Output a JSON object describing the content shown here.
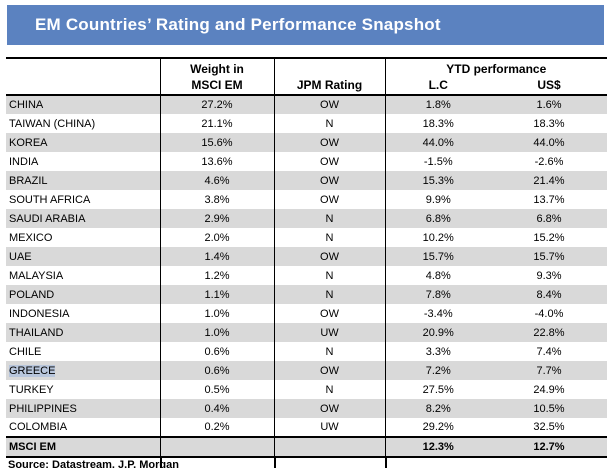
{
  "banner": {
    "title": "EM Countries’ Rating and Performance Snapshot",
    "bg_color": "#5b82c0",
    "text_color": "#ffffff"
  },
  "table": {
    "header": {
      "country_col": "",
      "weight_line1": "Weight in",
      "weight_line2": "MSCI EM",
      "rating": "JPM Rating",
      "ytd_group": "YTD performance",
      "lc": "L.C",
      "usd": "US$"
    },
    "rows": [
      {
        "country": "CHINA",
        "weight": "27.2%",
        "rating": "OW",
        "lc": "1.8%",
        "usd": "1.6%"
      },
      {
        "country": "TAIWAN (CHINA)",
        "weight": "21.1%",
        "rating": "N",
        "lc": "18.3%",
        "usd": "18.3%"
      },
      {
        "country": "KOREA",
        "weight": "15.6%",
        "rating": "OW",
        "lc": "44.0%",
        "usd": "44.0%"
      },
      {
        "country": "INDIA",
        "weight": "13.6%",
        "rating": "OW",
        "lc": "-1.5%",
        "usd": "-2.6%"
      },
      {
        "country": "BRAZIL",
        "weight": "4.6%",
        "rating": "OW",
        "lc": "15.3%",
        "usd": "21.4%"
      },
      {
        "country": "SOUTH AFRICA",
        "weight": "3.8%",
        "rating": "OW",
        "lc": "9.9%",
        "usd": "13.7%"
      },
      {
        "country": "SAUDI ARABIA",
        "weight": "2.9%",
        "rating": "N",
        "lc": "6.8%",
        "usd": "6.8%"
      },
      {
        "country": "MEXICO",
        "weight": "2.0%",
        "rating": "N",
        "lc": "10.2%",
        "usd": "15.2%"
      },
      {
        "country": "UAE",
        "weight": "1.4%",
        "rating": "OW",
        "lc": "15.7%",
        "usd": "15.7%"
      },
      {
        "country": "MALAYSIA",
        "weight": "1.2%",
        "rating": "N",
        "lc": "4.8%",
        "usd": "9.3%"
      },
      {
        "country": "POLAND",
        "weight": "1.1%",
        "rating": "N",
        "lc": "7.8%",
        "usd": "8.4%"
      },
      {
        "country": "INDONESIA",
        "weight": "1.0%",
        "rating": "OW",
        "lc": "-3.4%",
        "usd": "-4.0%"
      },
      {
        "country": "THAILAND",
        "weight": "1.0%",
        "rating": "UW",
        "lc": "20.9%",
        "usd": "22.8%"
      },
      {
        "country": "CHILE",
        "weight": "0.6%",
        "rating": "N",
        "lc": "3.3%",
        "usd": "7.4%"
      },
      {
        "country": "GREECE",
        "weight": "0.6%",
        "rating": "OW",
        "lc": "7.2%",
        "usd": "7.7%",
        "highlighted": true
      },
      {
        "country": "TURKEY",
        "weight": "0.5%",
        "rating": "N",
        "lc": "27.5%",
        "usd": "24.9%"
      },
      {
        "country": "PHILIPPINES",
        "weight": "0.4%",
        "rating": "OW",
        "lc": "8.2%",
        "usd": "10.5%"
      },
      {
        "country": "COLOMBIA",
        "weight": "0.2%",
        "rating": "UW",
        "lc": "29.2%",
        "usd": "32.5%"
      }
    ],
    "summary_row": {
      "label": "MSCI EM",
      "weight": "",
      "rating": "",
      "lc": "12.3%",
      "usd": "12.7%"
    }
  },
  "footnote": {
    "text": "Source: Datastream, J.P. Morgan"
  },
  "colors": {
    "stripe_gray": "#d9d9d9",
    "selection_highlight": "#b8c6dc",
    "banner_blue": "#5b82c0"
  }
}
